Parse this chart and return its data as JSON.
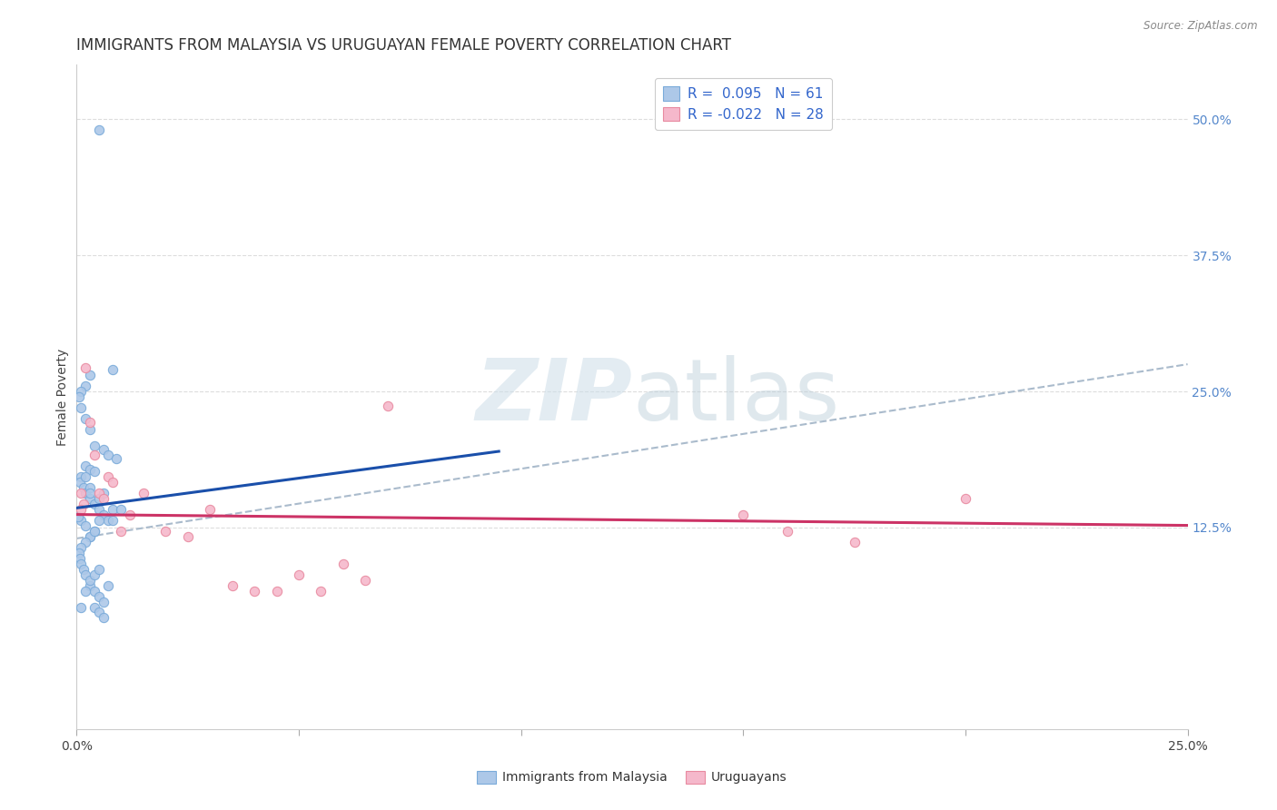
{
  "title": "IMMIGRANTS FROM MALAYSIA VS URUGUAYAN FEMALE POVERTY CORRELATION CHART",
  "source": "Source: ZipAtlas.com",
  "ylabel": "Female Poverty",
  "xmin": 0.0,
  "xmax": 0.25,
  "ymin": -0.06,
  "ymax": 0.55,
  "watermark_zip": "ZIP",
  "watermark_atlas": "atlas",
  "right_ytick_vals": [
    0.125,
    0.25,
    0.375,
    0.5
  ],
  "right_yticklabels": [
    "12.5%",
    "25.0%",
    "37.5%",
    "50.0%"
  ],
  "legend_r1": "R =  0.095",
  "legend_n1": "N = 61",
  "legend_r2": "R = -0.022",
  "legend_n2": "N = 28",
  "blue_color": "#adc8e8",
  "pink_color": "#f5b8cb",
  "blue_edge": "#7aabda",
  "pink_edge": "#e88aa0",
  "trend_blue_color": "#1a4faa",
  "trend_pink_color": "#cc3366",
  "trend_dashed_color": "#aabbcc",
  "grid_color": "#dddddd",
  "background_color": "#ffffff",
  "title_fontsize": 12,
  "axis_label_fontsize": 10,
  "tick_fontsize": 10,
  "legend_fontsize": 11,
  "blue_scatter_x": [
    0.005,
    0.008,
    0.003,
    0.002,
    0.001,
    0.0005,
    0.001,
    0.002,
    0.003,
    0.004,
    0.006,
    0.007,
    0.009,
    0.002,
    0.003,
    0.001,
    0.0008,
    0.0015,
    0.002,
    0.003,
    0.004,
    0.005,
    0.006,
    0.007,
    0.008,
    0.002,
    0.003,
    0.004,
    0.003,
    0.005,
    0.006,
    0.001,
    0.002,
    0.003,
    0.004,
    0.005,
    0.003,
    0.004,
    0.002,
    0.001,
    0.0005,
    0.0008,
    0.001,
    0.0015,
    0.002,
    0.003,
    0.004,
    0.005,
    0.006,
    0.004,
    0.005,
    0.006,
    0.007,
    0.003,
    0.002,
    0.001,
    0.004,
    0.005,
    0.01,
    0.008,
    0.0003
  ],
  "blue_scatter_y": [
    0.49,
    0.27,
    0.265,
    0.255,
    0.25,
    0.245,
    0.235,
    0.225,
    0.215,
    0.2,
    0.197,
    0.192,
    0.188,
    0.182,
    0.178,
    0.172,
    0.167,
    0.162,
    0.157,
    0.152,
    0.147,
    0.142,
    0.137,
    0.132,
    0.142,
    0.172,
    0.162,
    0.177,
    0.157,
    0.152,
    0.157,
    0.132,
    0.127,
    0.117,
    0.122,
    0.132,
    0.117,
    0.122,
    0.112,
    0.107,
    0.102,
    0.097,
    0.092,
    0.087,
    0.082,
    0.072,
    0.067,
    0.062,
    0.057,
    0.052,
    0.047,
    0.042,
    0.072,
    0.077,
    0.067,
    0.052,
    0.082,
    0.087,
    0.142,
    0.132,
    0.135
  ],
  "pink_scatter_x": [
    0.001,
    0.0015,
    0.002,
    0.003,
    0.004,
    0.005,
    0.006,
    0.007,
    0.008,
    0.01,
    0.012,
    0.015,
    0.02,
    0.025,
    0.03,
    0.035,
    0.04,
    0.045,
    0.05,
    0.055,
    0.06,
    0.065,
    0.07,
    0.15,
    0.16,
    0.175,
    0.2,
    0.001
  ],
  "pink_scatter_y": [
    0.157,
    0.147,
    0.272,
    0.222,
    0.192,
    0.157,
    0.152,
    0.172,
    0.167,
    0.122,
    0.137,
    0.157,
    0.122,
    0.117,
    0.142,
    0.072,
    0.067,
    0.067,
    0.082,
    0.067,
    0.092,
    0.077,
    0.237,
    0.137,
    0.122,
    0.112,
    0.152,
    0.142
  ],
  "blue_trend_x": [
    0.0,
    0.095
  ],
  "blue_trend_y": [
    0.143,
    0.195
  ],
  "pink_trend_x": [
    0.0,
    0.25
  ],
  "pink_trend_y": [
    0.137,
    0.127
  ],
  "dashed_trend_x": [
    0.0,
    0.25
  ],
  "dashed_trend_y": [
    0.115,
    0.275
  ]
}
